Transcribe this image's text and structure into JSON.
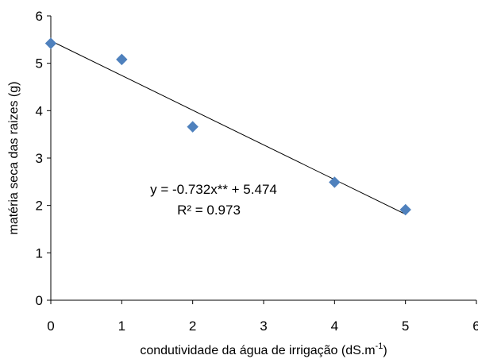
{
  "chart_data": {
    "type": "scatter",
    "xlabel": "condutividade da água de irrigação (dS.m",
    "xlabel_superscript": "-1",
    "xlabel_suffix": ")",
    "ylabel": "matéria seca das raizes (g)",
    "xlim": [
      0,
      6
    ],
    "ylim": [
      0,
      6
    ],
    "xticks": [
      "0",
      "1",
      "2",
      "3",
      "4",
      "5",
      "6"
    ],
    "yticks": [
      "0",
      "1",
      "2",
      "3",
      "4",
      "5",
      "6"
    ],
    "grid": false,
    "legend": "none",
    "marker_color": "#4F81BD",
    "line_color": "#000000",
    "points": [
      {
        "x": 0,
        "y": 5.42
      },
      {
        "x": 1,
        "y": 5.08
      },
      {
        "x": 2,
        "y": 3.66
      },
      {
        "x": 4,
        "y": 2.49
      },
      {
        "x": 5,
        "y": 1.91
      }
    ],
    "trendline": {
      "slope": -0.732,
      "intercept": 5.474,
      "x_range": [
        0,
        5
      ]
    },
    "equation": "y = -0.732x** + 5.474",
    "r_squared": "R² = 0.973"
  }
}
